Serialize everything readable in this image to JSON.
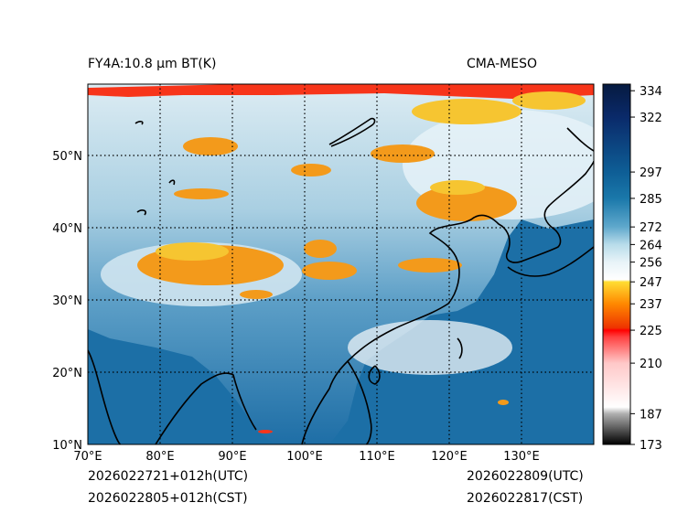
{
  "title_left": "FY4A:10.8 μm BT(K)",
  "title_right": "CMA-MESO",
  "footer": {
    "init_utc": "2026022721+012h(UTC)",
    "init_cst": "2026022805+012h(CST)",
    "valid_utc": "2026022809(UTC)",
    "valid_cst": "2026022817(CST)"
  },
  "axes": {
    "lon_ticks": [
      "70°E",
      "80°E",
      "90°E",
      "100°E",
      "110°E",
      "120°E",
      "130°E"
    ],
    "lat_ticks": [
      "10°N",
      "20°N",
      "30°N",
      "40°N",
      "50°N"
    ],
    "lon_range": [
      70,
      140
    ],
    "lat_range": [
      10,
      60
    ]
  },
  "colorbar": {
    "unit": "K",
    "range": [
      173,
      337
    ],
    "ticks": [
      "334",
      "322",
      "297",
      "285",
      "272",
      "264",
      "256",
      "247",
      "237",
      "225",
      "210",
      "187",
      "173"
    ],
    "tick_values": [
      334,
      322,
      297,
      285,
      272,
      264,
      256,
      247,
      237,
      225,
      210,
      187,
      173
    ],
    "stops": [
      {
        "k": 173,
        "color": "#000000"
      },
      {
        "k": 187,
        "color": "#b0b0b0"
      },
      {
        "k": 190,
        "color": "#ffffff"
      },
      {
        "k": 210,
        "color": "#ffc8c8"
      },
      {
        "k": 222,
        "color": "#ff4040"
      },
      {
        "k": 225,
        "color": "#ff0000"
      },
      {
        "k": 226,
        "color": "#ee3300"
      },
      {
        "k": 237,
        "color": "#ff8800"
      },
      {
        "k": 247,
        "color": "#ffdd33"
      },
      {
        "k": 248,
        "color": "#ffffff"
      },
      {
        "k": 256,
        "color": "#e8f3f8"
      },
      {
        "k": 264,
        "color": "#b8dcea"
      },
      {
        "k": 272,
        "color": "#5fa8cc"
      },
      {
        "k": 285,
        "color": "#1a78aa"
      },
      {
        "k": 297,
        "color": "#0e5e96"
      },
      {
        "k": 322,
        "color": "#0a2a6a"
      },
      {
        "k": 337,
        "color": "#061a40"
      }
    ]
  },
  "colors": {
    "ocean": "#1b6fa6",
    "land_cold": "#cfe6f1",
    "cloud_orange": "#f39a1b",
    "cloud_yellow": "#f6c531",
    "coastline": "#000000",
    "red_band": "#f7351a"
  }
}
